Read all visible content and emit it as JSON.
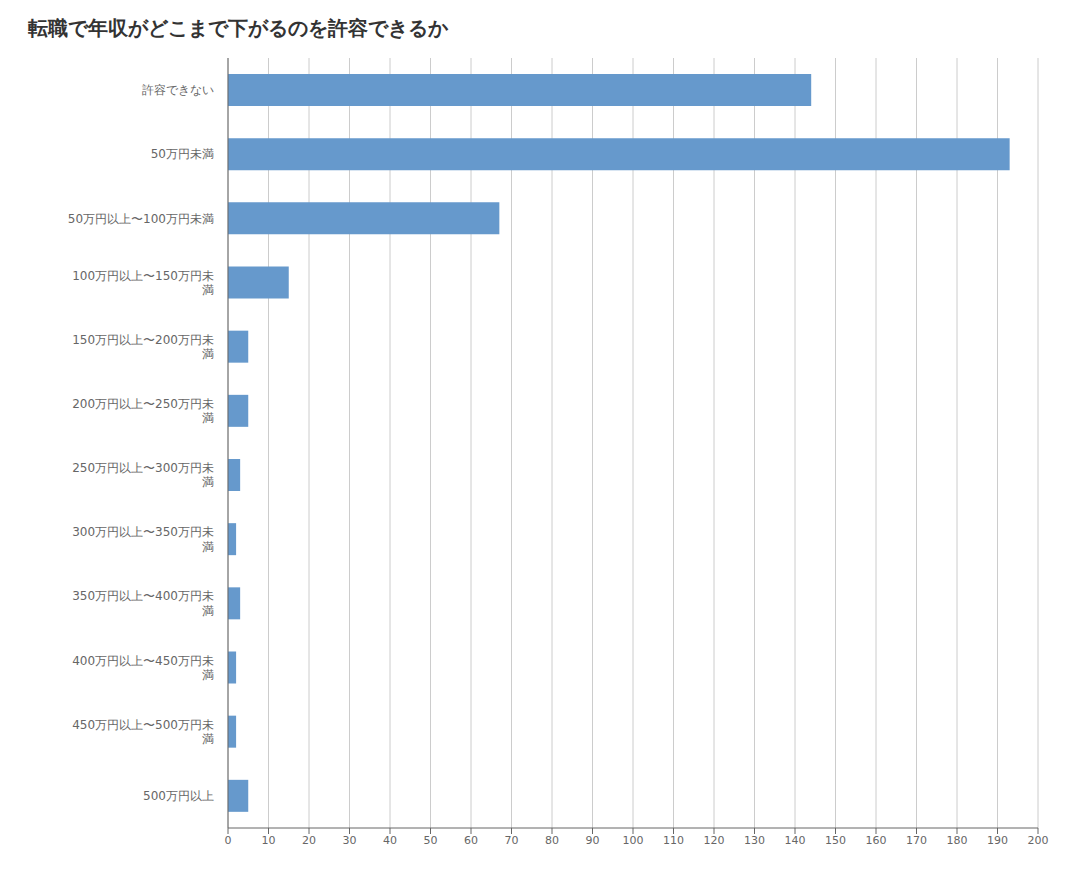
{
  "chart_data": {
    "type": "bar",
    "title": "転職で年収がどこまで下がるのを許容できるか",
    "orientation": "horizontal",
    "categories": [
      "許容できない",
      "50万円未満",
      "50万円以上〜100万円未満",
      "100万円以上〜150万円未\n満",
      "150万円以上〜200万円未\n満",
      "200万円以上〜250万円未\n満",
      "250万円以上〜300万円未\n満",
      "300万円以上〜350万円未\n満",
      "350万円以上〜400万円未\n満",
      "400万円以上〜450万円未\n満",
      "450万円以上〜500万円未\n満",
      "500万円以上"
    ],
    "values": [
      144,
      193,
      67,
      15,
      5,
      5,
      3,
      2,
      3,
      2,
      2,
      5
    ],
    "color": "#6699CC",
    "xlim": [
      0,
      200
    ],
    "xticks": [
      0,
      10,
      20,
      30,
      40,
      50,
      60,
      70,
      80,
      90,
      100,
      110,
      120,
      130,
      140,
      150,
      160,
      170,
      180,
      190,
      200
    ],
    "grid": true
  }
}
